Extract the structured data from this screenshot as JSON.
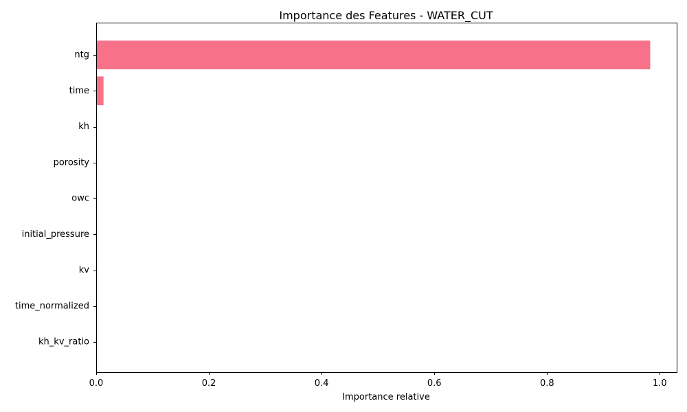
{
  "chart_data": {
    "type": "bar",
    "orientation": "horizontal",
    "title": "Importance des Features - WATER_CUT",
    "xlabel": "Importance relative",
    "ylabel": "",
    "categories": [
      "ntg",
      "time",
      "kh",
      "porosity",
      "owc",
      "initial_pressure",
      "kv",
      "time_normalized",
      "kh_kv_ratio"
    ],
    "values": [
      0.983,
      0.013,
      0.001,
      0.001,
      0.0005,
      0.0005,
      0.0003,
      0.0002,
      0.0001
    ],
    "xlim": [
      0,
      1.03
    ],
    "xticks": [
      "0.0",
      "0.2",
      "0.4",
      "0.6",
      "0.8",
      "1.0"
    ],
    "grid": false,
    "bar_color": "#f77189"
  }
}
